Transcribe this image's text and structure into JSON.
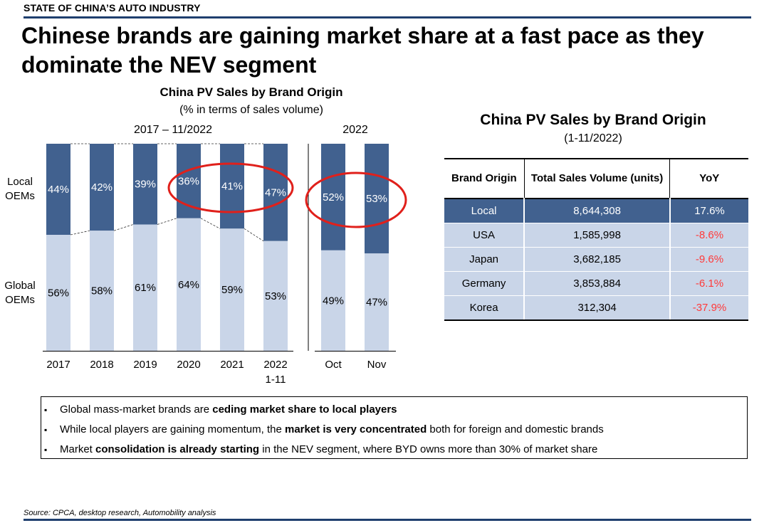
{
  "section_label": "STATE OF CHINA’S AUTO INDUSTRY",
  "headline": "Chinese brands are gaining market share at a fast pace as they dominate the NEV segment",
  "left_chart": {
    "title": "China PV Sales by Brand Origin",
    "subtitle": "(% in terms of sales volume)",
    "group1_label": "2017 – 11/2022",
    "group2_label": "2022",
    "row_label_local": "Local OEMs",
    "row_label_global": "Global OEMs"
  },
  "chart_data": {
    "type": "bar",
    "stacked": true,
    "title": "China PV Sales by Brand Origin",
    "subtitle": "(% in terms of sales volume)",
    "ylim": [
      0,
      100
    ],
    "groups": [
      {
        "label": "2017 – 11/2022",
        "categories": [
          "2017",
          "2018",
          "2019",
          "2020",
          "2021",
          "2022\n1-11"
        ]
      },
      {
        "label": "2022",
        "categories": [
          "Oct",
          "Nov"
        ]
      }
    ],
    "categories": [
      "2017",
      "2018",
      "2019",
      "2020",
      "2021",
      "2022\n1-11",
      "Oct",
      "Nov"
    ],
    "series": [
      {
        "name": "Local OEMs",
        "values": [
          44,
          42,
          39,
          36,
          41,
          47,
          52,
          53
        ],
        "labels": [
          "44%",
          "42%",
          "39%",
          "36%",
          "41%",
          "47%",
          "52%",
          "53%"
        ]
      },
      {
        "name": "Global OEMs",
        "values": [
          56,
          58,
          61,
          64,
          59,
          53,
          49,
          47
        ],
        "labels": [
          "56%",
          "58%",
          "61%",
          "64%",
          "59%",
          "53%",
          "49%",
          "47%"
        ]
      }
    ],
    "colors": {
      "local": "#41618f",
      "global": "#c9d5e8",
      "highlight": "#e0201b"
    },
    "annotations": [
      "red ellipse around 2020–2022 1-11 local share",
      "red ellipse around Oct–Nov local share"
    ]
  },
  "table": {
    "title": "China PV Sales by Brand Origin",
    "subtitle": "(1-11/2022)",
    "headers": [
      "Brand Origin",
      "Total Sales Volume (units)",
      "YoY"
    ],
    "rows": [
      {
        "origin": "Local",
        "volume": "8,644,308",
        "yoy": "17.6%"
      },
      {
        "origin": "USA",
        "volume": "1,585,998",
        "yoy": "-8.6%"
      },
      {
        "origin": "Japan",
        "volume": "3,682,185",
        "yoy": "-9.6%"
      },
      {
        "origin": "Germany",
        "volume": "3,853,884",
        "yoy": "-6.1%"
      },
      {
        "origin": "Korea",
        "volume": "312,304",
        "yoy": "-37.9%"
      }
    ]
  },
  "bullets": [
    {
      "pre": "Global mass-market brands are ",
      "bold": "ceding market share to local players",
      "post": ""
    },
    {
      "pre": "While local players are gaining momentum, the ",
      "bold": "market is very concentrated",
      "post": " both for foreign and domestic brands"
    },
    {
      "pre": "Market ",
      "bold": "consolidation is already starting",
      "post": " in the NEV segment, where BYD owns more than 30% of market share"
    }
  ],
  "bullet_marker": "▪",
  "source": "Source: CPCA, desktop research, Automobility analysis"
}
